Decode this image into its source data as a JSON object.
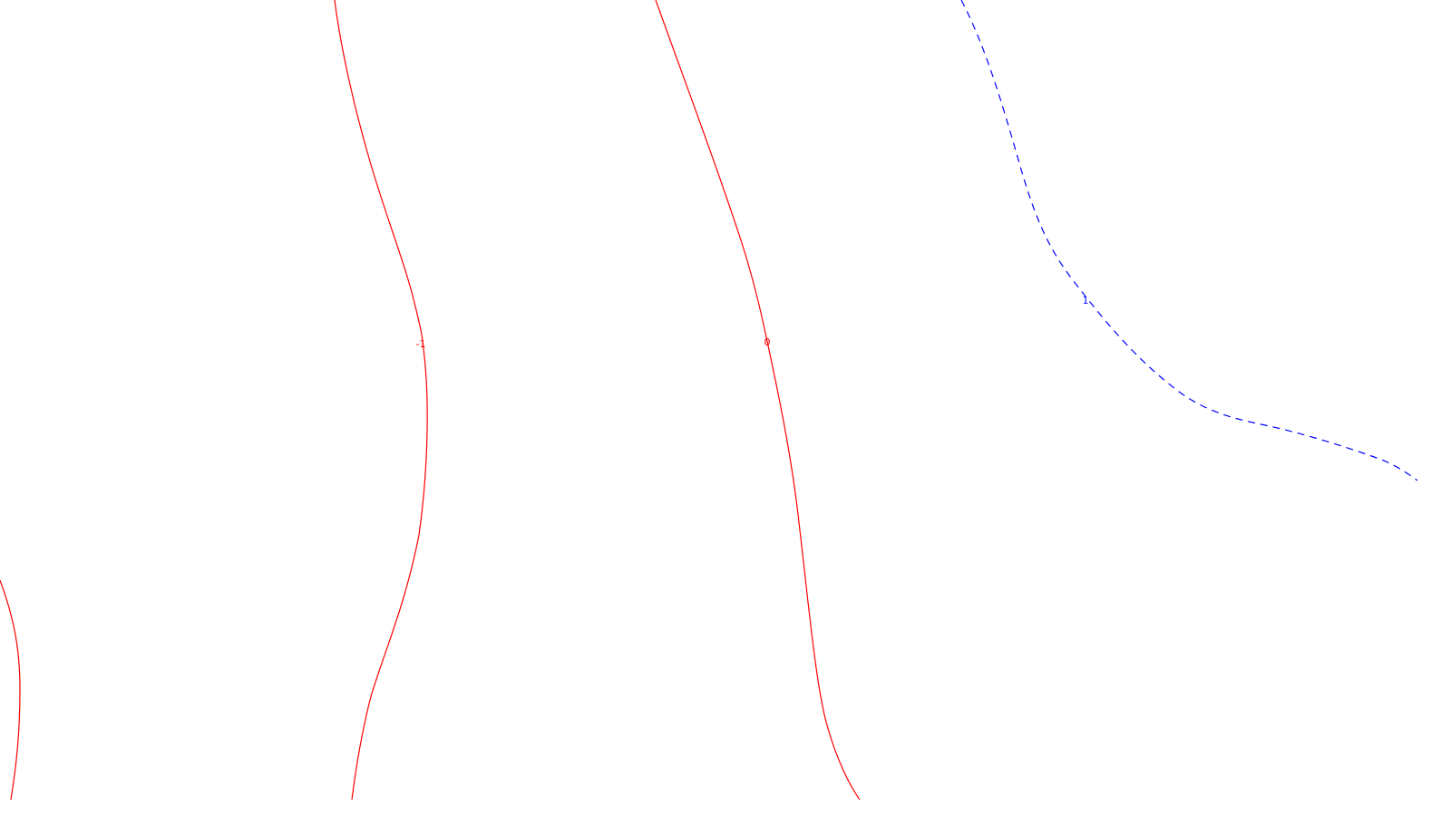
{
  "map": {
    "type": "contour-plot",
    "background": "#ffffff",
    "contours": [
      {
        "id": "left-edge",
        "style": "solid",
        "color": "#ff0000",
        "label": ""
      },
      {
        "id": "minus-one",
        "style": "solid",
        "color": "#ff0000",
        "label": "-1"
      },
      {
        "id": "zero",
        "style": "solid",
        "color": "#ff0000",
        "label": "0"
      },
      {
        "id": "one",
        "style": "dashed",
        "color": "#0000ff",
        "label": "1"
      }
    ]
  }
}
